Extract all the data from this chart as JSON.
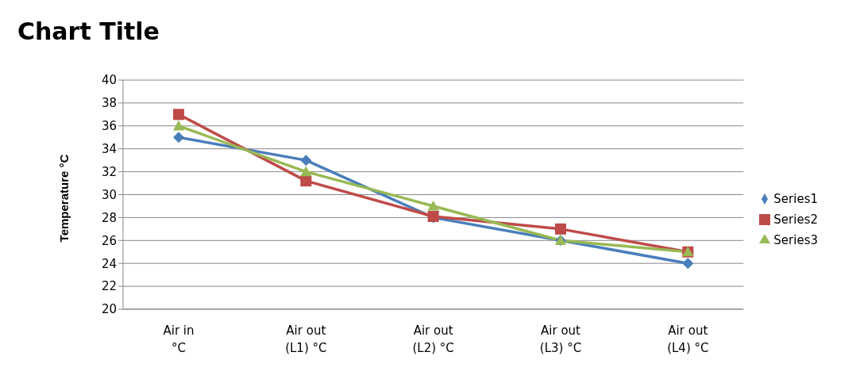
{
  "chart_data": {
    "type": "line",
    "title": "Chart Title",
    "ylabel": "Temperature °C",
    "categories": [
      "Air in °C",
      "Air out (L1) °C",
      "Air out (L2) °C",
      "Air out (L3) °C",
      "Air out (L4) °C"
    ],
    "series": [
      {
        "name": "Series1",
        "color": "#4a7ebb",
        "values": [
          35,
          33,
          28,
          26,
          24
        ],
        "marker": "diamond"
      },
      {
        "name": "Series2",
        "color": "#be4b48",
        "values": [
          37,
          31.2,
          28.1,
          27,
          25
        ],
        "marker": "square"
      },
      {
        "name": "Series3",
        "color": "#98b954",
        "values": [
          36,
          32,
          29,
          26,
          25
        ],
        "marker": "triangle"
      }
    ],
    "ylim": [
      20,
      40
    ],
    "yticks": [
      20,
      22,
      24,
      26,
      28,
      30,
      32,
      34,
      36,
      38,
      40
    ],
    "grid": "y",
    "legend": "right",
    "line_style": "solid"
  }
}
